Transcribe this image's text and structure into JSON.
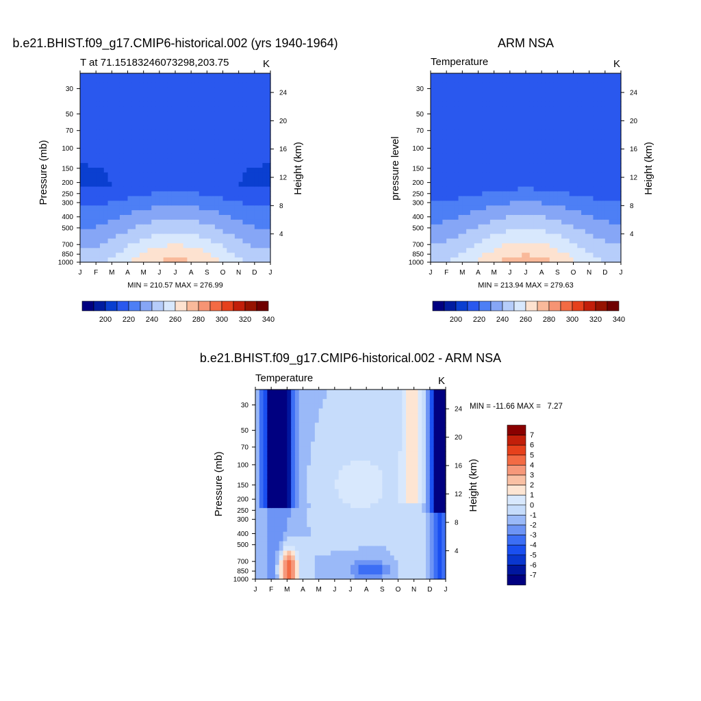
{
  "colors": {
    "temp_levels": [
      "#000080",
      "#001ca0",
      "#0a3fd0",
      "#2a58ee",
      "#4d7ff5",
      "#86a6f6",
      "#b6cdfa",
      "#d8e8fd",
      "#fde2d0",
      "#f9b99a",
      "#f69474",
      "#f36b44",
      "#e6411c",
      "#c21f0a",
      "#961300",
      "#6f0000"
    ],
    "diff_levels": [
      "#000080",
      "#00169e",
      "#0a37cf",
      "#1a4ff0",
      "#3c6ef5",
      "#6d94f5",
      "#9ab9f8",
      "#c6dcfb",
      "#d8e8fd",
      "#fde5d3",
      "#f9c0a4",
      "#f6987a",
      "#f36b44",
      "#e6411c",
      "#c21f0a",
      "#8a0000"
    ]
  },
  "panels": [
    {
      "title": "b.e21.BHIST.f09_g17.CMIP6-historical.002 (yrs 1940-1964)",
      "left_string": "T at 71.15183246073298,203.75",
      "right_string": "K",
      "ylabel": "Pressure (mb)",
      "ylabel_right": "Height (km)",
      "minmax": "MIN = 210.57 MAX = 276.99"
    },
    {
      "title": "ARM NSA",
      "left_string": "Temperature",
      "right_string": "K",
      "ylabel": "pressure level",
      "ylabel_right": "Height (km)",
      "minmax": "MIN = 213.94 MAX = 279.63"
    },
    {
      "title": "b.e21.BHIST.f09_g17.CMIP6-historical.002 - ARM NSA",
      "left_string": "Temperature",
      "right_string": "K",
      "ylabel": "Pressure (mb)",
      "ylabel_right": "Height (km)",
      "minmax": "MIN = -11.66 MAX =   7.27"
    }
  ],
  "colorbar_labels_temp": [
    "200",
    "220",
    "240",
    "260",
    "280",
    "300",
    "320",
    "340"
  ],
  "colorbar_labels_diff": [
    "7",
    "6",
    "5",
    "4",
    "3",
    "2",
    "1",
    "0",
    "-1",
    "-2",
    "-3",
    "-4",
    "-5",
    "-6",
    "-7"
  ],
  "chart_data": [
    {
      "type": "heatmap",
      "title": "b.e21.BHIST.f09_g17.CMIP6-historical.002 (yrs 1940-1964)",
      "x": [
        "J",
        "F",
        "M",
        "A",
        "M",
        "J",
        "J",
        "A",
        "S",
        "O",
        "N",
        "D",
        "J"
      ],
      "y_pressure_ticks": [
        30,
        50,
        70,
        100,
        150,
        200,
        250,
        300,
        400,
        500,
        700,
        850,
        1000
      ],
      "y_height_ticks": [
        24,
        20,
        16,
        12,
        8,
        4
      ],
      "ylabel": "Pressure (mb)",
      "ylabel_right": "Height (km)",
      "units": "K",
      "min": 210.57,
      "max": 276.99,
      "contour_levels": [
        195,
        200,
        205,
        210,
        215,
        220,
        225,
        230,
        235,
        240,
        245,
        250,
        255,
        260,
        265,
        270,
        275,
        280,
        285,
        290,
        295,
        300,
        305,
        310,
        315,
        320,
        325,
        330,
        335,
        340,
        345
      ]
    },
    {
      "type": "heatmap",
      "title": "ARM NSA",
      "x": [
        "J",
        "F",
        "M",
        "A",
        "M",
        "J",
        "J",
        "A",
        "S",
        "O",
        "N",
        "D",
        "J"
      ],
      "y_pressure_ticks": [
        30,
        50,
        70,
        100,
        150,
        200,
        250,
        300,
        400,
        500,
        700,
        850,
        1000
      ],
      "y_height_ticks": [
        24,
        20,
        16,
        12,
        8,
        4
      ],
      "ylabel": "pressure level",
      "ylabel_right": "Height (km)",
      "units": "K",
      "min": 213.94,
      "max": 279.63
    },
    {
      "type": "heatmap",
      "title": "b.e21.BHIST.f09_g17.CMIP6-historical.002 - ARM NSA",
      "x": [
        "J",
        "F",
        "M",
        "A",
        "M",
        "J",
        "J",
        "A",
        "S",
        "O",
        "N",
        "D",
        "J"
      ],
      "y_pressure_ticks": [
        30,
        50,
        70,
        100,
        150,
        200,
        250,
        300,
        400,
        500,
        700,
        850,
        1000
      ],
      "y_height_ticks": [
        24,
        20,
        16,
        12,
        8,
        4
      ],
      "ylabel": "Pressure (mb)",
      "ylabel_right": "Height (km)",
      "units": "K",
      "min": -11.66,
      "max": 7.27,
      "contour_levels": [
        -7,
        -6,
        -5,
        -4,
        -3,
        -2,
        -1,
        0,
        1,
        2,
        3,
        4,
        5,
        6,
        7
      ]
    }
  ]
}
